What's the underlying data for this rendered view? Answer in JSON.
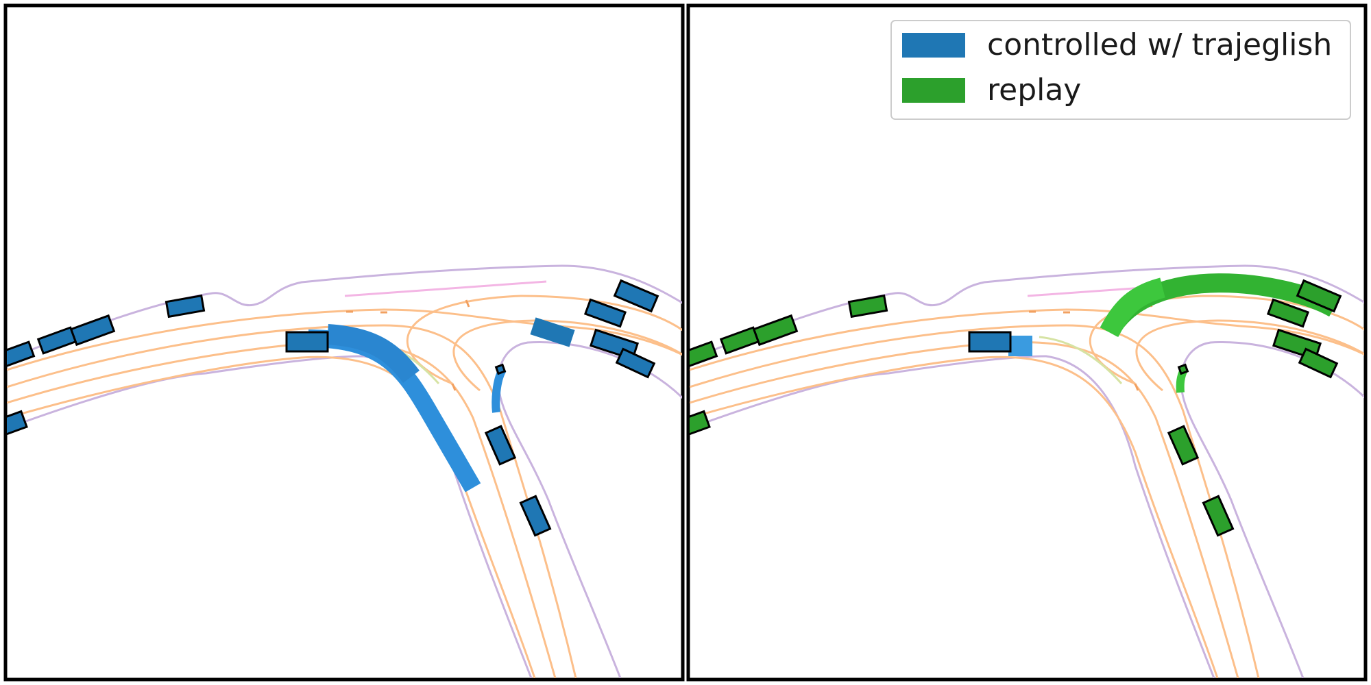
{
  "legend": {
    "items": [
      {
        "label": "controlled w/ trajeglish",
        "color": "#1f77b4"
      },
      {
        "label": "replay",
        "color": "#2ca02c"
      }
    ]
  },
  "panels": [
    {
      "name": "controlled-panel",
      "agent_color": "#1f77b4",
      "trail_color": "#2e8fdb"
    },
    {
      "name": "replay-panel",
      "agent_color": "#2ca02c",
      "trail_color": "#3dc73d"
    }
  ],
  "map_colors": {
    "road_edge": "#c9b3de",
    "lane_center": "#fcbf8a",
    "crosswalk": "#f3b5e4",
    "intersection_lane": "#d6e3a3"
  }
}
